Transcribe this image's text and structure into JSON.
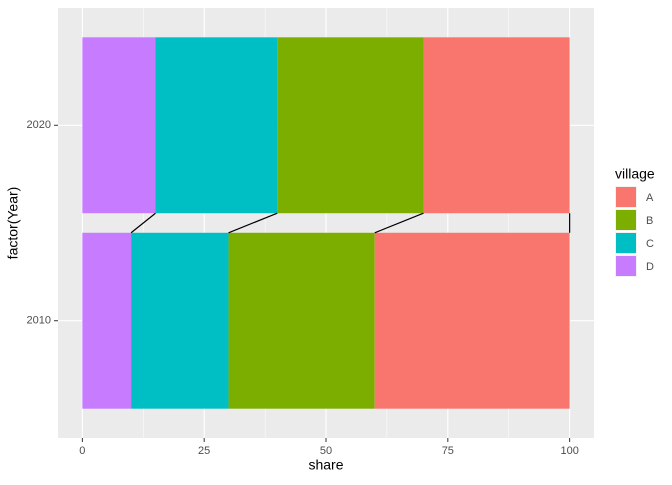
{
  "chart_data": {
    "type": "stacked-bar-horizontal",
    "x_label": "share",
    "y_label": "factor(Year)",
    "categories": [
      "2010",
      "2020"
    ],
    "legend_title": "village",
    "series": [
      {
        "name": "A",
        "color": "#f8766d",
        "values": [
          40,
          30
        ]
      },
      {
        "name": "B",
        "color": "#7cae00",
        "values": [
          30,
          30
        ]
      },
      {
        "name": "C",
        "color": "#00bfc4",
        "values": [
          20,
          25
        ]
      },
      {
        "name": "D",
        "color": "#c77cff",
        "values": [
          10,
          15
        ]
      }
    ],
    "xlim": [
      -5,
      105
    ],
    "xticks": [
      0,
      25,
      50,
      75,
      100
    ],
    "grid": true,
    "legend_position": "right"
  }
}
